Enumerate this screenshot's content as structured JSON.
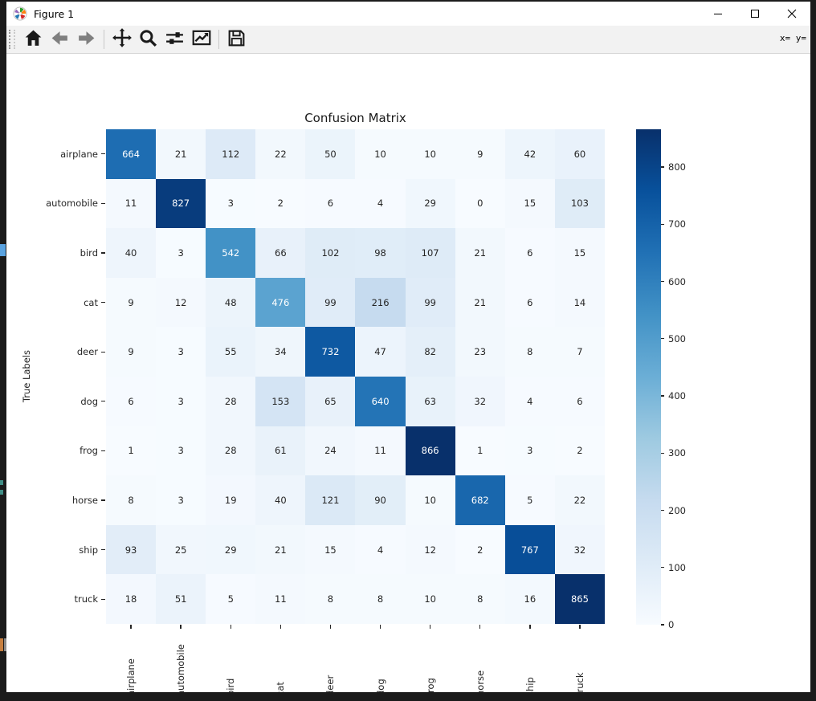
{
  "window": {
    "title": "Figure 1",
    "controls": [
      "minimize",
      "maximize",
      "close"
    ]
  },
  "toolbar": {
    "buttons": [
      {
        "name": "home"
      },
      {
        "name": "back"
      },
      {
        "name": "forward"
      },
      {
        "name": "pan"
      },
      {
        "name": "zoom"
      },
      {
        "name": "configure-subplots"
      },
      {
        "name": "edit-parameters"
      },
      {
        "name": "save"
      }
    ],
    "coords_label": "x= y="
  },
  "chart_data": {
    "type": "heatmap",
    "title": "Confusion Matrix",
    "xlabel": "",
    "ylabel": "True Labels",
    "categories": [
      "airplane",
      "automobile",
      "bird",
      "cat",
      "deer",
      "dog",
      "frog",
      "horse",
      "ship",
      "truck"
    ],
    "matrix": [
      [
        664,
        21,
        112,
        22,
        50,
        10,
        10,
        9,
        42,
        60
      ],
      [
        11,
        827,
        3,
        2,
        6,
        4,
        29,
        0,
        15,
        103
      ],
      [
        40,
        3,
        542,
        66,
        102,
        98,
        107,
        21,
        6,
        15
      ],
      [
        9,
        12,
        48,
        476,
        99,
        216,
        99,
        21,
        6,
        14
      ],
      [
        9,
        3,
        55,
        34,
        732,
        47,
        82,
        23,
        8,
        7
      ],
      [
        6,
        3,
        28,
        153,
        65,
        640,
        63,
        32,
        4,
        6
      ],
      [
        1,
        3,
        28,
        61,
        24,
        11,
        866,
        1,
        3,
        2
      ],
      [
        8,
        3,
        19,
        40,
        121,
        90,
        10,
        682,
        5,
        22
      ],
      [
        93,
        25,
        29,
        21,
        15,
        4,
        12,
        2,
        767,
        32
      ],
      [
        18,
        51,
        5,
        11,
        8,
        8,
        10,
        8,
        16,
        865
      ]
    ],
    "colormap": "Blues",
    "vmin": 0,
    "vmax": 866,
    "annotations": true,
    "grid": false,
    "colorbar_position": "right",
    "colorbar_ticks": [
      0,
      100,
      200,
      300,
      400,
      500,
      600,
      700,
      800
    ]
  },
  "colors": {
    "accent_dark_blue": "#08306b",
    "accent_light_blue": "#f7fbff",
    "toolbar_bg": "#f2f2f2",
    "desktop_bg": "#1b1b1b"
  }
}
